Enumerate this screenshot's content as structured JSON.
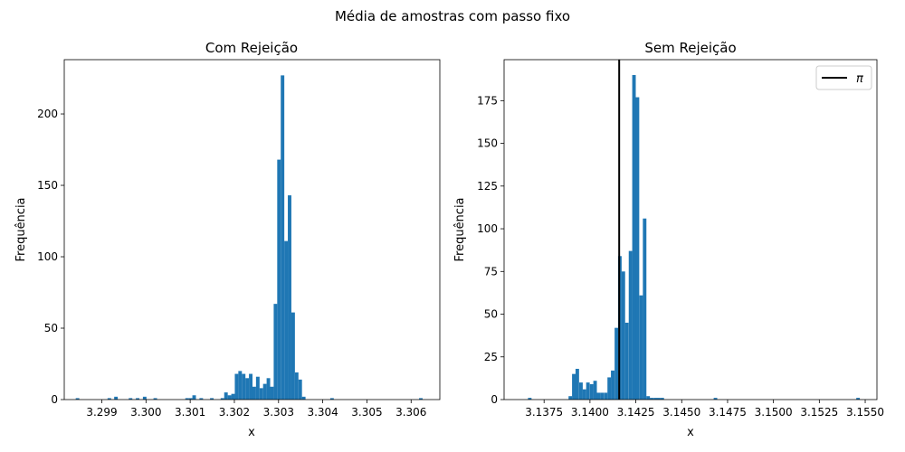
{
  "figure": {
    "suptitle": "Média de amostras com passo fixo",
    "bar_color": "#1f77b4"
  },
  "chart_data": [
    {
      "type": "bar",
      "title": "Com Rejeição",
      "xlabel": "x",
      "ylabel": "Frequência",
      "xlim": [
        3.29815,
        3.30665
      ],
      "ylim": [
        0,
        238
      ],
      "xticks": [
        3.299,
        3.3,
        3.301,
        3.302,
        3.303,
        3.304,
        3.305,
        3.306
      ],
      "xtick_labels": [
        "3.299",
        "3.300",
        "3.301",
        "3.302",
        "3.303",
        "3.304",
        "3.305",
        "3.306"
      ],
      "yticks": [
        0,
        50,
        100,
        150,
        200
      ],
      "ytick_labels": [
        "0",
        "50",
        "100",
        "150",
        "200"
      ],
      "bin_width": 8.02e-05,
      "bins": [
        {
          "x": 3.29845,
          "y": 1
        },
        {
          "x": 3.29917,
          "y": 1
        },
        {
          "x": 3.29932,
          "y": 2
        },
        {
          "x": 3.29965,
          "y": 1
        },
        {
          "x": 3.29981,
          "y": 1
        },
        {
          "x": 3.29997,
          "y": 2
        },
        {
          "x": 3.30021,
          "y": 1
        },
        {
          "x": 3.30093,
          "y": 1
        },
        {
          "x": 3.30101,
          "y": 1
        },
        {
          "x": 3.30109,
          "y": 3
        },
        {
          "x": 3.30125,
          "y": 1
        },
        {
          "x": 3.30149,
          "y": 1
        },
        {
          "x": 3.30173,
          "y": 1
        },
        {
          "x": 3.30181,
          "y": 5
        },
        {
          "x": 3.30189,
          "y": 3
        },
        {
          "x": 3.30197,
          "y": 4
        },
        {
          "x": 3.30205,
          "y": 18
        },
        {
          "x": 3.30213,
          "y": 20
        },
        {
          "x": 3.30221,
          "y": 18
        },
        {
          "x": 3.30229,
          "y": 15
        },
        {
          "x": 3.30237,
          "y": 18
        },
        {
          "x": 3.30245,
          "y": 9
        },
        {
          "x": 3.30253,
          "y": 16
        },
        {
          "x": 3.30261,
          "y": 8
        },
        {
          "x": 3.30269,
          "y": 11
        },
        {
          "x": 3.30277,
          "y": 15
        },
        {
          "x": 3.30285,
          "y": 9
        },
        {
          "x": 3.30293,
          "y": 67
        },
        {
          "x": 3.30301,
          "y": 168
        },
        {
          "x": 3.30309,
          "y": 227
        },
        {
          "x": 3.30317,
          "y": 111
        },
        {
          "x": 3.30325,
          "y": 143
        },
        {
          "x": 3.30333,
          "y": 61
        },
        {
          "x": 3.30341,
          "y": 19
        },
        {
          "x": 3.30349,
          "y": 14
        },
        {
          "x": 3.30357,
          "y": 2
        },
        {
          "x": 3.30421,
          "y": 1
        },
        {
          "x": 3.30622,
          "y": 1
        }
      ]
    },
    {
      "type": "bar",
      "title": "Sem Rejeição",
      "xlabel": "x",
      "ylabel": "Frequência",
      "xlim": [
        3.13532,
        3.15564
      ],
      "ylim": [
        0,
        199
      ],
      "xticks": [
        3.1375,
        3.14,
        3.1425,
        3.145,
        3.1475,
        3.15,
        3.1525,
        3.155
      ],
      "xtick_labels": [
        "3.1375",
        "3.1400",
        "3.1425",
        "3.1450",
        "3.1475",
        "3.1500",
        "3.1525",
        "3.1550"
      ],
      "yticks": [
        0,
        25,
        50,
        75,
        100,
        125,
        150,
        175
      ],
      "ytick_labels": [
        "0",
        "25",
        "50",
        "75",
        "100",
        "125",
        "150",
        "175"
      ],
      "bin_width": 0.000193,
      "bins": [
        {
          "x": 3.13672,
          "y": 1
        },
        {
          "x": 3.13893,
          "y": 2
        },
        {
          "x": 3.13912,
          "y": 15
        },
        {
          "x": 3.13931,
          "y": 18
        },
        {
          "x": 3.13951,
          "y": 10
        },
        {
          "x": 3.1397,
          "y": 6
        },
        {
          "x": 3.13989,
          "y": 10
        },
        {
          "x": 3.14009,
          "y": 9
        },
        {
          "x": 3.14028,
          "y": 11
        },
        {
          "x": 3.14047,
          "y": 4
        },
        {
          "x": 3.14066,
          "y": 4
        },
        {
          "x": 3.14086,
          "y": 4
        },
        {
          "x": 3.14105,
          "y": 13
        },
        {
          "x": 3.14124,
          "y": 17
        },
        {
          "x": 3.14144,
          "y": 42
        },
        {
          "x": 3.14163,
          "y": 84
        },
        {
          "x": 3.14182,
          "y": 75
        },
        {
          "x": 3.14201,
          "y": 45
        },
        {
          "x": 3.14221,
          "y": 87
        },
        {
          "x": 3.1424,
          "y": 190
        },
        {
          "x": 3.14259,
          "y": 177
        },
        {
          "x": 3.14279,
          "y": 61
        },
        {
          "x": 3.14298,
          "y": 106
        },
        {
          "x": 3.14317,
          "y": 2
        },
        {
          "x": 3.14336,
          "y": 1
        },
        {
          "x": 3.14356,
          "y": 1
        },
        {
          "x": 3.14375,
          "y": 1
        },
        {
          "x": 3.14394,
          "y": 1
        },
        {
          "x": 3.14684,
          "y": 1
        },
        {
          "x": 3.15461,
          "y": 1
        }
      ],
      "reference_line": {
        "x": 3.14159265,
        "color": "#000000",
        "label": "π"
      },
      "legend": {
        "position": "upper-right",
        "entries": [
          "π"
        ]
      }
    }
  ]
}
